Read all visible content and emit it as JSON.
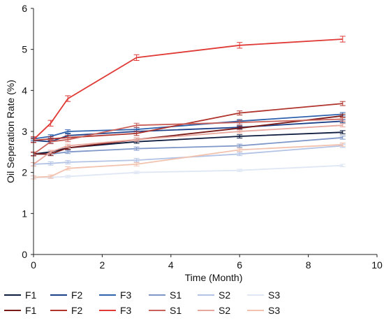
{
  "chart_data": {
    "type": "line",
    "xlabel": "Time (Month)",
    "ylabel": "Oil Seperation Rate (%)",
    "xlim": [
      0,
      10
    ],
    "ylim": [
      0,
      6
    ],
    "x_ticks": [
      "0",
      "2",
      "4",
      "6",
      "8",
      "10"
    ],
    "y_ticks": [
      "0",
      "1",
      "2",
      "3",
      "4",
      "5",
      "6"
    ],
    "grid": false,
    "legend_position": "bottom",
    "x": [
      0,
      0.5,
      1,
      3,
      6,
      9
    ],
    "series": [
      {
        "name": "F1",
        "color": "#0d1b3e",
        "error": 0.04,
        "values": [
          2.45,
          2.5,
          2.6,
          2.75,
          2.88,
          2.98
        ]
      },
      {
        "name": "F2",
        "color": "#1c3f87",
        "error": 0.04,
        "values": [
          2.78,
          2.75,
          2.9,
          3.0,
          3.1,
          3.25
        ]
      },
      {
        "name": "F3",
        "color": "#2e62ad",
        "error": 0.04,
        "values": [
          2.82,
          2.88,
          3.0,
          3.05,
          3.25,
          3.42
        ]
      },
      {
        "name": "S1",
        "color": "#7f97c8",
        "error": 0.04,
        "values": [
          2.45,
          2.45,
          2.5,
          2.58,
          2.65,
          2.85
        ]
      },
      {
        "name": "S2",
        "color": "#b3c3e5",
        "error": 0.04,
        "values": [
          2.2,
          2.22,
          2.25,
          2.3,
          2.45,
          2.65
        ]
      },
      {
        "name": "S3",
        "color": "#dfe6f4",
        "error": 0.03,
        "values": [
          1.88,
          1.88,
          1.9,
          2.0,
          2.05,
          2.17
        ]
      },
      {
        "name": "F1",
        "color": "#7a1a18",
        "error": 0.04,
        "values": [
          2.45,
          2.45,
          2.6,
          2.8,
          3.08,
          3.38
        ]
      },
      {
        "name": "F2",
        "color": "#b0332c",
        "error": 0.05,
        "values": [
          2.78,
          2.82,
          2.85,
          2.95,
          3.45,
          3.68
        ]
      },
      {
        "name": "F3",
        "color": "#e03a36",
        "error": 0.07,
        "values": [
          2.8,
          3.2,
          3.8,
          4.8,
          5.1,
          5.25
        ]
      },
      {
        "name": "S1",
        "color": "#c9615a",
        "error": 0.05,
        "values": [
          2.45,
          2.75,
          2.8,
          3.15,
          3.22,
          3.3
        ]
      },
      {
        "name": "S2",
        "color": "#e8a79c",
        "error": 0.04,
        "values": [
          2.2,
          2.5,
          2.65,
          2.8,
          3.0,
          3.15
        ]
      },
      {
        "name": "S3",
        "color": "#f2c2ae",
        "error": 0.04,
        "values": [
          1.88,
          1.9,
          2.1,
          2.2,
          2.55,
          2.68
        ]
      }
    ]
  }
}
